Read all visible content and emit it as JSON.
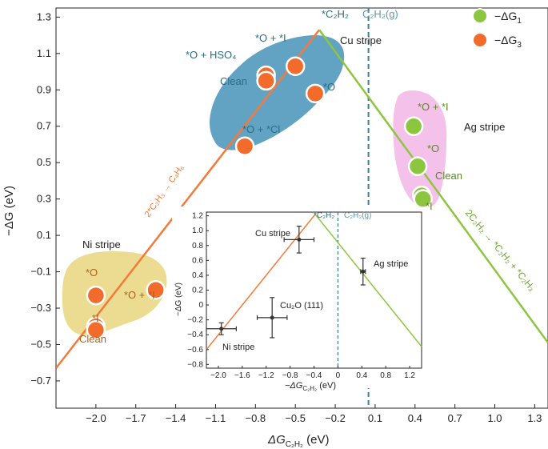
{
  "chart_data": [
    {
      "type": "scatter",
      "xlabel_main": "ΔG",
      "xlabel_sub": "C₂H₂",
      "xlabel_unit": " (eV)",
      "ylabel": "−ΔG (eV)",
      "xlim": [
        -2.3,
        1.4
      ],
      "ylim": [
        -0.85,
        1.35
      ],
      "xticks": [
        -2.0,
        -1.7,
        -1.4,
        -1.1,
        -0.8,
        -0.5,
        -0.2,
        0.1,
        0.4,
        0.7,
        1.0,
        1.3
      ],
      "xtick_labels": [
        "−2.0",
        "−1.7",
        "−1.4",
        "−1.1",
        "−0.8",
        "−0.5",
        "−0.2",
        "0.1",
        "0.4",
        "0.7",
        "1.0",
        "1.3"
      ],
      "yticks": [
        1.3,
        1.1,
        0.9,
        0.7,
        0.5,
        0.3,
        0.1,
        -0.1,
        -0.3,
        -0.5,
        -0.7
      ],
      "ytick_labels": [
        "1.3",
        "1.1",
        "0.9",
        "0.7",
        "0.5",
        "0.3",
        "0.1",
        "−0.1",
        "−0.3",
        "−0.5",
        "−0.7"
      ],
      "legend": [
        {
          "label": "−ΔG",
          "sub": "1",
          "color": "#8cc63f"
        },
        {
          "label": "−ΔG",
          "sub": "3",
          "color": "#f26b2b"
        }
      ],
      "lines": {
        "orange": {
          "x": [
            -2.3,
            -0.32
          ],
          "y": [
            -0.63,
            1.23
          ],
          "color": "#f47a3a"
        },
        "green": {
          "x": [
            -0.32,
            1.4
          ],
          "y": [
            1.23,
            -0.49
          ],
          "color": "#8cc63f"
        },
        "dashed_x": 0.05,
        "dashed_color": "#3d7f93"
      },
      "line_labels": {
        "orange": "2*C₂H₃ → C₄H₆",
        "green": "2C₂H₂ → *C₂H₂ + *C₂H₃"
      },
      "regions": [
        {
          "label": "Cu stripe",
          "color": "#2f7fa8"
        },
        {
          "label": "Ag stripe",
          "color": "#f2b6e6"
        },
        {
          "label": "Ni stripe",
          "color": "#e8d67e"
        }
      ],
      "top_labels": {
        "left": "*C₂H₂",
        "right": "C₂H₂(g)"
      },
      "points_orange": [
        {
          "label": "*O + *I",
          "x": -0.72,
          "y": 0.98
        },
        {
          "label": "Clean",
          "x": -0.72,
          "y": 0.95
        },
        {
          "label": "*O + HSO₄",
          "x": -0.5,
          "y": 1.03
        },
        {
          "label": "*O",
          "x": -0.35,
          "y": 0.88
        },
        {
          "label": "*O + *Cl",
          "x": -0.88,
          "y": 0.59
        },
        {
          "label": "*O",
          "x": -2.0,
          "y": -0.23
        },
        {
          "label": "*O + *I",
          "x": -1.55,
          "y": -0.2
        },
        {
          "label": "*I",
          "x": -2.0,
          "y": -0.4
        },
        {
          "label": "Clean",
          "x": -2.0,
          "y": -0.42
        }
      ],
      "points_green": [
        {
          "label": "*O + *I",
          "x": 0.39,
          "y": 0.7
        },
        {
          "label": "*O",
          "x": 0.42,
          "y": 0.48
        },
        {
          "label": "Clean",
          "x": 0.45,
          "y": 0.32
        },
        {
          "label": "*I",
          "x": 0.46,
          "y": 0.3
        }
      ]
    },
    {
      "type": "scatter",
      "xlabel_main": "−ΔG",
      "xlabel_sub": "C₂H₂",
      "xlabel_unit": " (eV)",
      "ylabel": "−ΔG (eV)",
      "xlim": [
        -2.2,
        1.4
      ],
      "ylim": [
        -0.85,
        1.25
      ],
      "xticks": [
        -2.0,
        -1.6,
        -1.2,
        -0.8,
        -0.4,
        0,
        0.4,
        0.8,
        1.2
      ],
      "xtick_labels": [
        "−2.0",
        "−1.6",
        "−1.2",
        "−0.8",
        "−0.4",
        "0",
        "0.4",
        "0.8",
        "1.2"
      ],
      "yticks": [
        1.2,
        1.0,
        0.8,
        0.6,
        0.4,
        0.2,
        0,
        -0.2,
        -0.4,
        -0.6,
        -0.8
      ],
      "ytick_labels": [
        "1.2",
        "1.0",
        "0.8",
        "0.6",
        "0.4",
        "0.2",
        "0",
        "−0.2",
        "−0.4",
        "−0.6",
        "−0.8"
      ],
      "top_labels": {
        "left": "*C₂H₂",
        "right": "C₂H₂(g)"
      },
      "dashed_x": 0,
      "orange_line": {
        "x": [
          -2.2,
          -0.38
        ],
        "y": [
          -0.6,
          1.22
        ]
      },
      "green_line": {
        "x": [
          -0.38,
          1.4
        ],
        "y": [
          1.22,
          -0.56
        ]
      },
      "points": [
        {
          "label": "Cu stripe",
          "x": -0.65,
          "y": 0.88,
          "xerr": 0.25,
          "yerr": 0.18
        },
        {
          "label": "Ag stripe",
          "x": 0.42,
          "y": 0.45,
          "xerr": 0.04,
          "yerr": 0.18
        },
        {
          "label": "Cu₂O (111)",
          "x": -1.1,
          "y": -0.17,
          "xerr": 0.25,
          "yerr": 0.27
        },
        {
          "label": "Ni stripe",
          "x": -1.95,
          "y": -0.32,
          "xerr": 0.25,
          "yerr": 0.08
        }
      ]
    }
  ]
}
